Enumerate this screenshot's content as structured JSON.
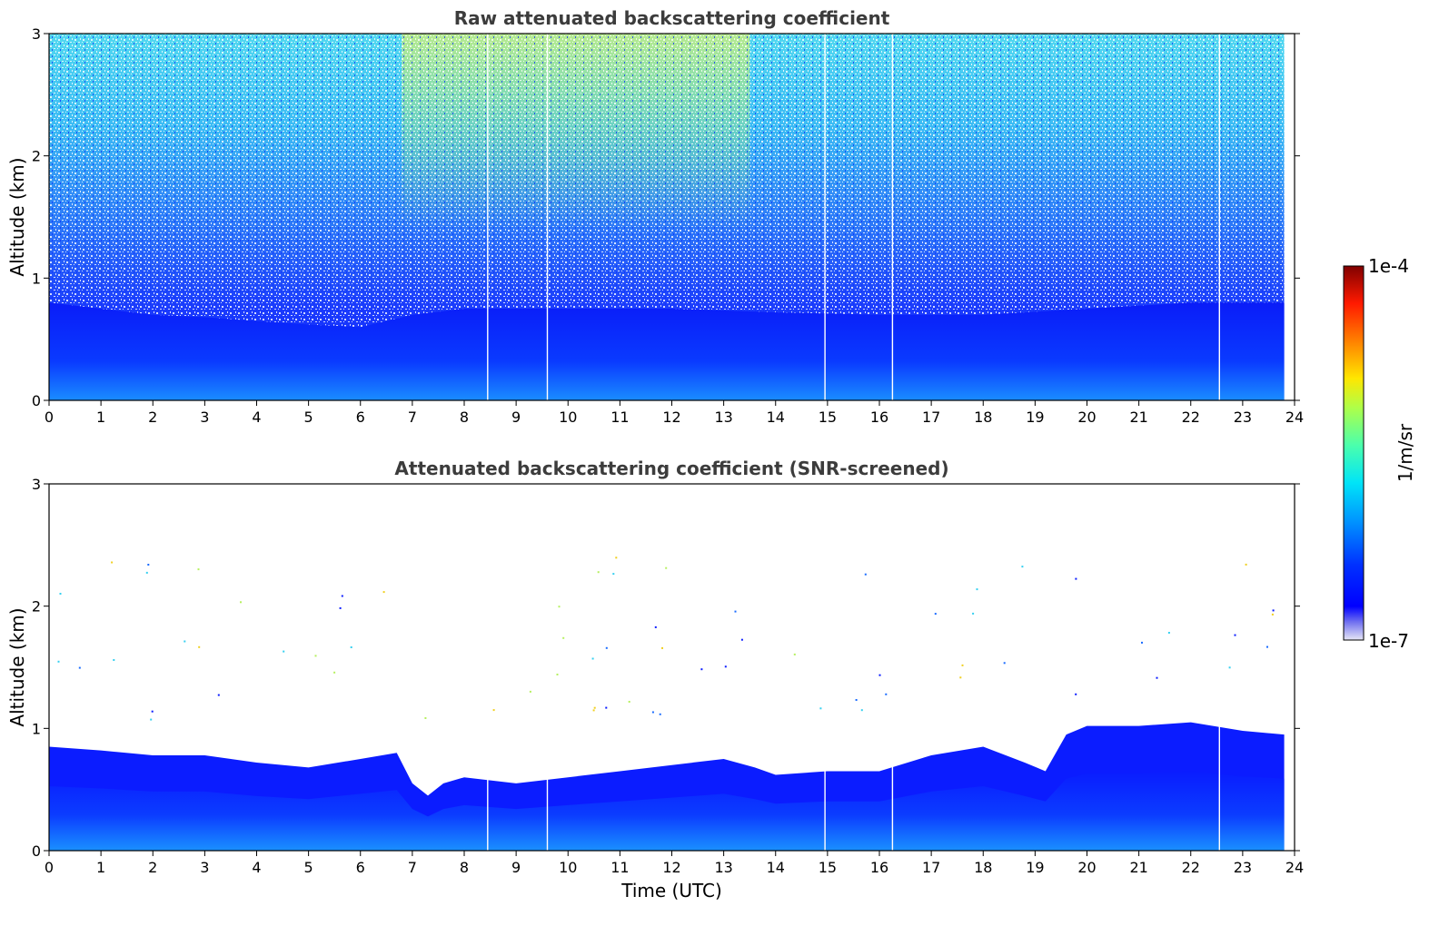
{
  "chart_data": [
    {
      "type": "heatmap",
      "title": "Raw attenuated backscattering coefficient",
      "xlabel": "",
      "ylabel": "Altitude (km)",
      "xlim": [
        0,
        24
      ],
      "ylim": [
        0,
        3
      ],
      "xticks": [
        0,
        1,
        2,
        3,
        4,
        5,
        6,
        7,
        8,
        9,
        10,
        11,
        12,
        13,
        14,
        15,
        16,
        17,
        18,
        19,
        20,
        21,
        22,
        23,
        24
      ],
      "yticks": [
        0,
        1,
        2,
        3
      ],
      "data_end_time": 23.8,
      "gap_times": [
        8.45,
        9.6,
        14.95,
        16.25,
        22.55
      ],
      "boundary_layer_top_km": [
        [
          0,
          0.8
        ],
        [
          1,
          0.75
        ],
        [
          2,
          0.7
        ],
        [
          3,
          0.68
        ],
        [
          4,
          0.65
        ],
        [
          5,
          0.62
        ],
        [
          6,
          0.6
        ],
        [
          7,
          0.7
        ],
        [
          8,
          0.75
        ],
        [
          10,
          0.75
        ],
        [
          12,
          0.75
        ],
        [
          14,
          0.72
        ],
        [
          16,
          0.7
        ],
        [
          18,
          0.7
        ],
        [
          20,
          0.75
        ],
        [
          22,
          0.8
        ],
        [
          23.8,
          0.8
        ]
      ],
      "colormap": "jet"
    },
    {
      "type": "heatmap",
      "title": "Attenuated backscattering coefficient (SNR-screened)",
      "xlabel": "Time (UTC)",
      "ylabel": "Altitude (km)",
      "xlim": [
        0,
        24
      ],
      "ylim": [
        0,
        3
      ],
      "xticks": [
        0,
        1,
        2,
        3,
        4,
        5,
        6,
        7,
        8,
        9,
        10,
        11,
        12,
        13,
        14,
        15,
        16,
        17,
        18,
        19,
        20,
        21,
        22,
        23,
        24
      ],
      "yticks": [
        0,
        1,
        2,
        3
      ],
      "data_end_time": 23.8,
      "gap_times": [
        8.45,
        9.6,
        14.95,
        16.25,
        22.55
      ],
      "signal_top_km": [
        [
          0,
          0.85
        ],
        [
          1,
          0.82
        ],
        [
          2,
          0.78
        ],
        [
          3,
          0.78
        ],
        [
          4,
          0.72
        ],
        [
          5,
          0.68
        ],
        [
          6,
          0.75
        ],
        [
          6.7,
          0.8
        ],
        [
          7.0,
          0.55
        ],
        [
          7.3,
          0.45
        ],
        [
          7.6,
          0.55
        ],
        [
          8,
          0.6
        ],
        [
          9,
          0.55
        ],
        [
          10,
          0.6
        ],
        [
          11,
          0.65
        ],
        [
          12,
          0.7
        ],
        [
          13,
          0.75
        ],
        [
          13.6,
          0.68
        ],
        [
          14,
          0.62
        ],
        [
          15,
          0.65
        ],
        [
          16,
          0.65
        ],
        [
          17,
          0.78
        ],
        [
          18,
          0.85
        ],
        [
          18.8,
          0.72
        ],
        [
          19.2,
          0.65
        ],
        [
          19.6,
          0.95
        ],
        [
          20,
          1.02
        ],
        [
          21,
          1.02
        ],
        [
          22,
          1.05
        ],
        [
          23,
          0.98
        ],
        [
          23.8,
          0.95
        ]
      ],
      "colormap": "jet"
    }
  ],
  "colorbar": {
    "label": "1/m/sr",
    "max_label": "1e-4",
    "min_label": "1e-7",
    "scale": "log"
  }
}
